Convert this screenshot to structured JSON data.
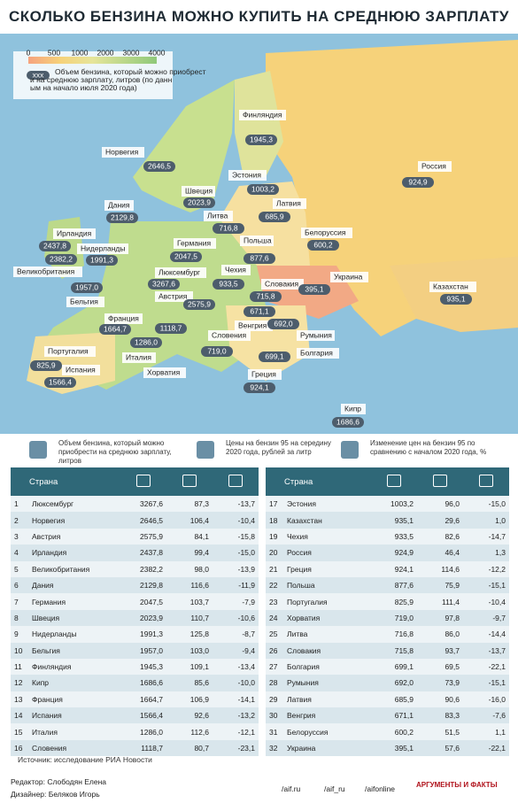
{
  "title": "СКОЛЬКО БЕНЗИНА МОЖНО КУПИТЬ НА СРЕДНЮЮ ЗАРПЛАТУ",
  "legend": {
    "scale": [
      0,
      500,
      1000,
      2000,
      3000,
      4000
    ],
    "sample": "xxx",
    "text": "Объем бензина, который можно приобрести на среднюю зарплату, литров (по данным на начало июля 2020 года)"
  },
  "map_labels": [
    {
      "country": "Финляндия",
      "value": "1945,3"
    },
    {
      "country": "Норвегия",
      "value": "2646,5"
    },
    {
      "country": "Эстония",
      "value": "1003,2"
    },
    {
      "country": "Россия",
      "value": "924,9"
    },
    {
      "country": "Швеция",
      "value": "2023,9"
    },
    {
      "country": "Латвия",
      "value": "685,9"
    },
    {
      "country": "Дания",
      "value": "2129,8"
    },
    {
      "country": "Литва",
      "value": "716,8"
    },
    {
      "country": "Белоруссия",
      "value": "600,2"
    },
    {
      "country": "Ирландия",
      "value": "2437,8"
    },
    {
      "country": "Германия",
      "value": "2047,5"
    },
    {
      "country": "Польша",
      "value": "877,6"
    },
    {
      "country": "Нидерланды",
      "value": "1991,3"
    },
    {
      "country": "Великобритания",
      "value": "2382,2"
    },
    {
      "country": "Люксембург",
      "value": "3267,6"
    },
    {
      "country": "Чехия",
      "value": "933,5"
    },
    {
      "country": "Словакия",
      "value": "715,8"
    },
    {
      "country": "Украина",
      "value": "395,1"
    },
    {
      "country": "Казахстан",
      "value": "935,1"
    },
    {
      "country": "Бельгия",
      "value": "1957,0"
    },
    {
      "country": "Австрия",
      "value": "2575,9"
    },
    {
      "country": "Франция",
      "value": "1664,7"
    },
    {
      "country": "Венгрия",
      "value": "671,1"
    },
    {
      "country": "Словения",
      "value": "1118,7"
    },
    {
      "country": "Румыния",
      "value": "692,0"
    },
    {
      "country": "Болгария",
      "value": "699,1"
    },
    {
      "country": "Италия",
      "value": "1286,0"
    },
    {
      "country": "Португалия",
      "value": "825,9"
    },
    {
      "country": "Испания",
      "value": "1566,4"
    },
    {
      "country": "Хорватия",
      "value": "719,0"
    },
    {
      "country": "Греция",
      "value": "924,1"
    },
    {
      "country": "Кипр",
      "value": "1686,6"
    }
  ],
  "key": [
    "Объем бензина, который можно приобрести на среднюю зарплату, литров",
    "Цены на бензин 95 на середину 2020 года, рублей за литр",
    "Изменение цен на бензин 95 по сравнению с началом 2020 года, %"
  ],
  "table": {
    "header": "Страна",
    "rows": [
      [
        "1",
        "Люксембург",
        "3267,6",
        "87,3",
        "-13,7"
      ],
      [
        "2",
        "Норвегия",
        "2646,5",
        "106,4",
        "-10,4"
      ],
      [
        "3",
        "Австрия",
        "2575,9",
        "84,1",
        "-15,8"
      ],
      [
        "4",
        "Ирландия",
        "2437,8",
        "99,4",
        "-15,0"
      ],
      [
        "5",
        "Великобритания",
        "2382,2",
        "98,0",
        "-13,9"
      ],
      [
        "6",
        "Дания",
        "2129,8",
        "116,6",
        "-11,9"
      ],
      [
        "7",
        "Германия",
        "2047,5",
        "103,7",
        "-7,9"
      ],
      [
        "8",
        "Швеция",
        "2023,9",
        "110,7",
        "-10,6"
      ],
      [
        "9",
        "Нидерланды",
        "1991,3",
        "125,8",
        "-8,7"
      ],
      [
        "10",
        "Бельгия",
        "1957,0",
        "103,0",
        "-9,4"
      ],
      [
        "11",
        "Финляндия",
        "1945,3",
        "109,1",
        "-13,4"
      ],
      [
        "12",
        "Кипр",
        "1686,6",
        "85,6",
        "-10,0"
      ],
      [
        "13",
        "Франция",
        "1664,7",
        "106,9",
        "-14,1"
      ],
      [
        "14",
        "Испания",
        "1566,4",
        "92,6",
        "-13,2"
      ],
      [
        "15",
        "Италия",
        "1286,0",
        "112,6",
        "-12,1"
      ],
      [
        "16",
        "Словения",
        "1118,7",
        "80,7",
        "-23,1"
      ],
      [
        "17",
        "Эстония",
        "1003,2",
        "96,0",
        "-15,0"
      ],
      [
        "18",
        "Казахстан",
        "935,1",
        "29,6",
        "1,0"
      ],
      [
        "19",
        "Чехия",
        "933,5",
        "82,6",
        "-14,7"
      ],
      [
        "20",
        "Россия",
        "924,9",
        "46,4",
        "1,3"
      ],
      [
        "21",
        "Греция",
        "924,1",
        "114,6",
        "-12,2"
      ],
      [
        "22",
        "Польша",
        "877,6",
        "75,9",
        "-15,1"
      ],
      [
        "23",
        "Португалия",
        "825,9",
        "111,4",
        "-10,4"
      ],
      [
        "24",
        "Хорватия",
        "719,0",
        "97,8",
        "-9,7"
      ],
      [
        "25",
        "Литва",
        "716,8",
        "86,0",
        "-14,4"
      ],
      [
        "26",
        "Словакия",
        "715,8",
        "93,7",
        "-13,7"
      ],
      [
        "27",
        "Болгария",
        "699,1",
        "69,5",
        "-22,1"
      ],
      [
        "28",
        "Румыния",
        "692,0",
        "73,9",
        "-15,1"
      ],
      [
        "29",
        "Латвия",
        "685,9",
        "90,6",
        "-16,0"
      ],
      [
        "30",
        "Венгрия",
        "671,1",
        "83,3",
        "-7,6"
      ],
      [
        "31",
        "Белоруссия",
        "600,2",
        "51,5",
        "1,1"
      ],
      [
        "32",
        "Украина",
        "395,1",
        "57,6",
        "-22,1"
      ]
    ]
  },
  "source": "Источник: исследование РИА Новости",
  "footer": {
    "editor": "Редактор: Слободян Елена",
    "designer": "Дизайнер: Беляков Игорь",
    "links": [
      "/aif.ru",
      "/aif_ru",
      "/aifonline"
    ],
    "logo": "АРГУМЕНТЫ И ФАКТЫ"
  }
}
